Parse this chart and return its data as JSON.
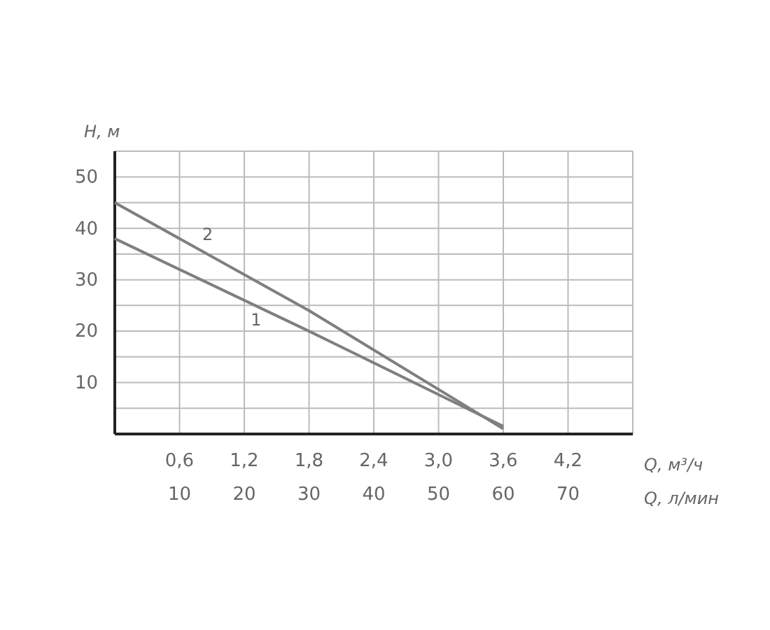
{
  "chart_data": {
    "type": "line",
    "xlabel": "Q, м³/ч",
    "x2label": "Q, л/мин",
    "ylabel": "H, м",
    "xlim": [
      0,
      4.8
    ],
    "xticks": [
      {
        "value": 0.6,
        "label": "0,6"
      },
      {
        "value": 1.2,
        "label": "1,2"
      },
      {
        "value": 1.8,
        "label": "1,8"
      },
      {
        "value": 2.4,
        "label": "2,4"
      },
      {
        "value": 3.0,
        "label": "3,0"
      },
      {
        "value": 3.6,
        "label": "3,6"
      },
      {
        "value": 4.2,
        "label": "4,2"
      }
    ],
    "x2lim": [
      0,
      80
    ],
    "x2ticks": [
      10,
      20,
      30,
      40,
      50,
      60,
      70
    ],
    "ylim": [
      0,
      55
    ],
    "yticks": [
      {
        "value": 5,
        "label": null
      },
      10,
      {
        "value": 15,
        "label": null
      },
      20,
      {
        "value": 25,
        "label": null
      },
      30,
      {
        "value": 35,
        "label": null
      },
      40,
      {
        "value": 45,
        "label": null
      },
      50
    ],
    "grid": true,
    "legend": false,
    "marker": "none",
    "line_style": "solid",
    "series": [
      {
        "name": "1",
        "color": "#7f7f7f",
        "x": [
          0,
          1.8,
          3.6
        ],
        "values": [
          38,
          20,
          1.5
        ]
      },
      {
        "name": "2",
        "color": "#7f7f7f",
        "x": [
          0,
          1.8,
          3.6
        ],
        "values": [
          45,
          24,
          1
        ]
      }
    ]
  }
}
